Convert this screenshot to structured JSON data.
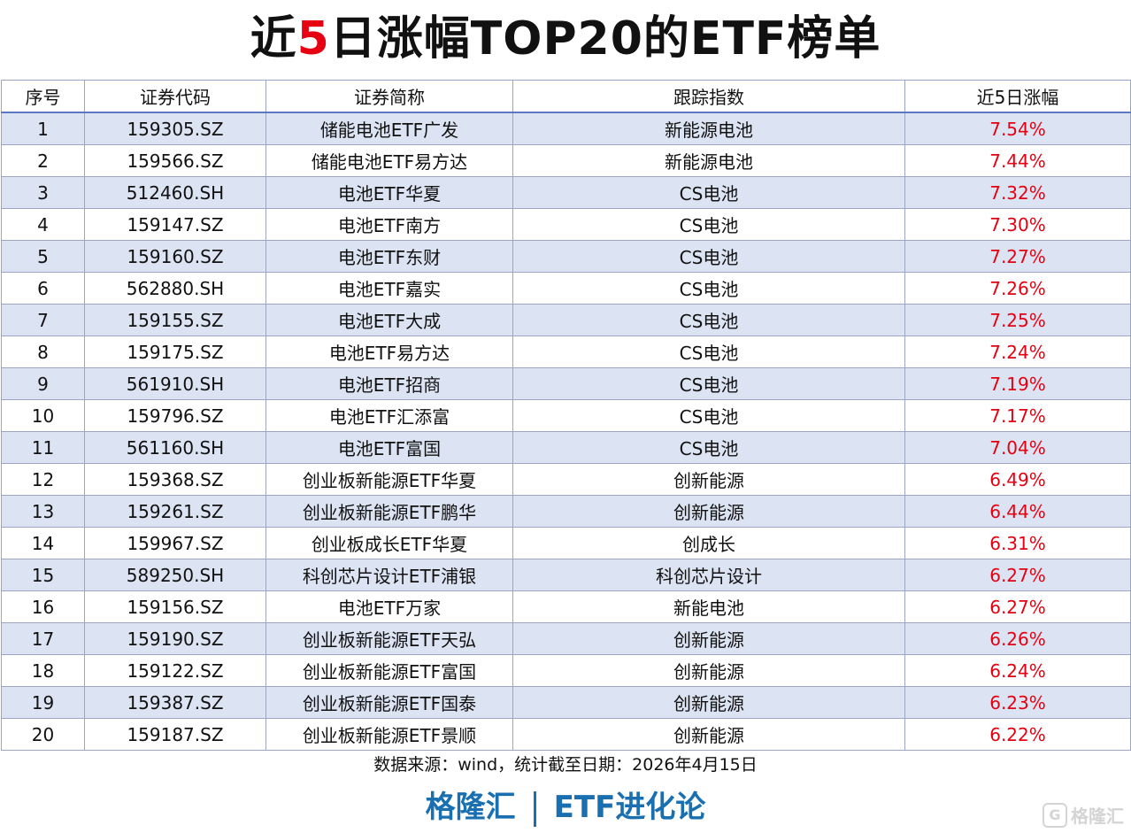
{
  "title": {
    "part1": "近",
    "highlight": "5",
    "part2": "日涨幅TOP20的ETF榜单",
    "highlight_color": "#e60012"
  },
  "table": {
    "headers": [
      "序号",
      "证券代码",
      "证券简称",
      "跟踪指数",
      "近5日涨幅"
    ],
    "rows": [
      [
        "1",
        "159305.SZ",
        "储能电池ETF广发",
        "新能源电池",
        "7.54%"
      ],
      [
        "2",
        "159566.SZ",
        "储能电池ETF易方达",
        "新能源电池",
        "7.44%"
      ],
      [
        "3",
        "512460.SH",
        "电池ETF华夏",
        "CS电池",
        "7.32%"
      ],
      [
        "4",
        "159147.SZ",
        "电池ETF南方",
        "CS电池",
        "7.30%"
      ],
      [
        "5",
        "159160.SZ",
        "电池ETF东财",
        "CS电池",
        "7.27%"
      ],
      [
        "6",
        "562880.SH",
        "电池ETF嘉实",
        "CS电池",
        "7.26%"
      ],
      [
        "7",
        "159155.SZ",
        "电池ETF大成",
        "CS电池",
        "7.25%"
      ],
      [
        "8",
        "159175.SZ",
        "电池ETF易方达",
        "CS电池",
        "7.24%"
      ],
      [
        "9",
        "561910.SH",
        "电池ETF招商",
        "CS电池",
        "7.19%"
      ],
      [
        "10",
        "159796.SZ",
        "电池ETF汇添富",
        "CS电池",
        "7.17%"
      ],
      [
        "11",
        "561160.SH",
        "电池ETF富国",
        "CS电池",
        "7.04%"
      ],
      [
        "12",
        "159368.SZ",
        "创业板新能源ETF华夏",
        "创新能源",
        "6.49%"
      ],
      [
        "13",
        "159261.SZ",
        "创业板新能源ETF鹏华",
        "创新能源",
        "6.44%"
      ],
      [
        "14",
        "159967.SZ",
        "创业板成长ETF华夏",
        "创成长",
        "6.31%"
      ],
      [
        "15",
        "589250.SH",
        "科创芯片设计ETF浦银",
        "科创芯片设计",
        "6.27%"
      ],
      [
        "16",
        "159156.SZ",
        "电池ETF万家",
        "新能电池",
        "6.27%"
      ],
      [
        "17",
        "159190.SZ",
        "创业板新能源ETF天弘",
        "创新能源",
        "6.26%"
      ],
      [
        "18",
        "159122.SZ",
        "创业板新能源ETF富国",
        "创新能源",
        "6.24%"
      ],
      [
        "19",
        "159387.SZ",
        "创业板新能源ETF国泰",
        "创新能源",
        "6.23%"
      ],
      [
        "20",
        "159187.SZ",
        "创业板新能源ETF景顺",
        "创新能源",
        "6.22%"
      ]
    ],
    "stripe_color": "#dce3f2",
    "pct_color": "#e60012"
  },
  "footer": {
    "source": "数据来源：wind，统计截至日期：2026年4月15日",
    "brand_left": "格隆汇",
    "brand_right": "ETF进化论",
    "brand_color": "#1a6fb0",
    "watermark": "格隆汇",
    "watermark_icon": "G"
  }
}
